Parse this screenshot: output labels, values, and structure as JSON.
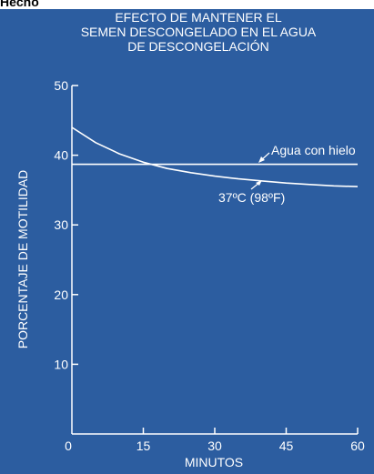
{
  "header_fragment": "Hecho",
  "chart_data": {
    "type": "line",
    "title_lines": [
      "EFECTO DE MANTENER EL",
      "SEMEN DESCONGELADO  EN EL AGUA",
      "DE DESCONGELACIÓN"
    ],
    "xlabel": "MINUTOS",
    "ylabel": "PORCENTAJE DE MOTILIDAD",
    "xlim": [
      0,
      60
    ],
    "ylim": [
      0,
      50
    ],
    "xticks": [
      "0",
      "15",
      "30",
      "45",
      "60"
    ],
    "yticks": [
      "10",
      "20",
      "30",
      "40",
      "50"
    ],
    "grid": false,
    "series": [
      {
        "name": "Agua con hielo",
        "x": [
          0,
          60
        ],
        "y": [
          38.7,
          38.7
        ]
      },
      {
        "name": "37ºC (98ºF)",
        "x": [
          0,
          5,
          10,
          15,
          20,
          25,
          30,
          35,
          40,
          45,
          50,
          55,
          60
        ],
        "y": [
          44,
          41.8,
          40.2,
          39.0,
          38.1,
          37.5,
          37.0,
          36.6,
          36.3,
          36.0,
          35.8,
          35.6,
          35.5
        ]
      }
    ]
  }
}
